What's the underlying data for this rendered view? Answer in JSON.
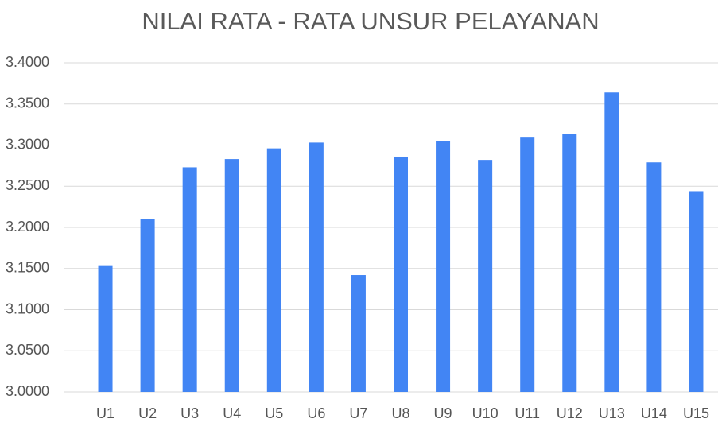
{
  "chart_data": {
    "type": "bar",
    "title": "NILAI RATA - RATA UNSUR PELAYANAN",
    "categories": [
      "U1",
      "U2",
      "U3",
      "U4",
      "U5",
      "U6",
      "U7",
      "U8",
      "U9",
      "U10",
      "U11",
      "U12",
      "U13",
      "U14",
      "U15"
    ],
    "values": [
      3.153,
      3.21,
      3.273,
      3.283,
      3.296,
      3.303,
      3.142,
      3.286,
      3.305,
      3.282,
      3.31,
      3.314,
      3.364,
      3.279,
      3.244
    ],
    "color": "#4285f4",
    "ylim": [
      3.0,
      3.4
    ],
    "yticks": [
      {
        "value": 3.0,
        "label": "3.0000"
      },
      {
        "value": 3.05,
        "label": "3.0500"
      },
      {
        "value": 3.1,
        "label": "3.1000"
      },
      {
        "value": 3.15,
        "label": "3.1500"
      },
      {
        "value": 3.2,
        "label": "3.2000"
      },
      {
        "value": 3.25,
        "label": "3.2500"
      },
      {
        "value": 3.3,
        "label": "3.3000"
      },
      {
        "value": 3.35,
        "label": "3.3500"
      },
      {
        "value": 3.4,
        "label": "3.4000"
      }
    ],
    "grid": true
  }
}
